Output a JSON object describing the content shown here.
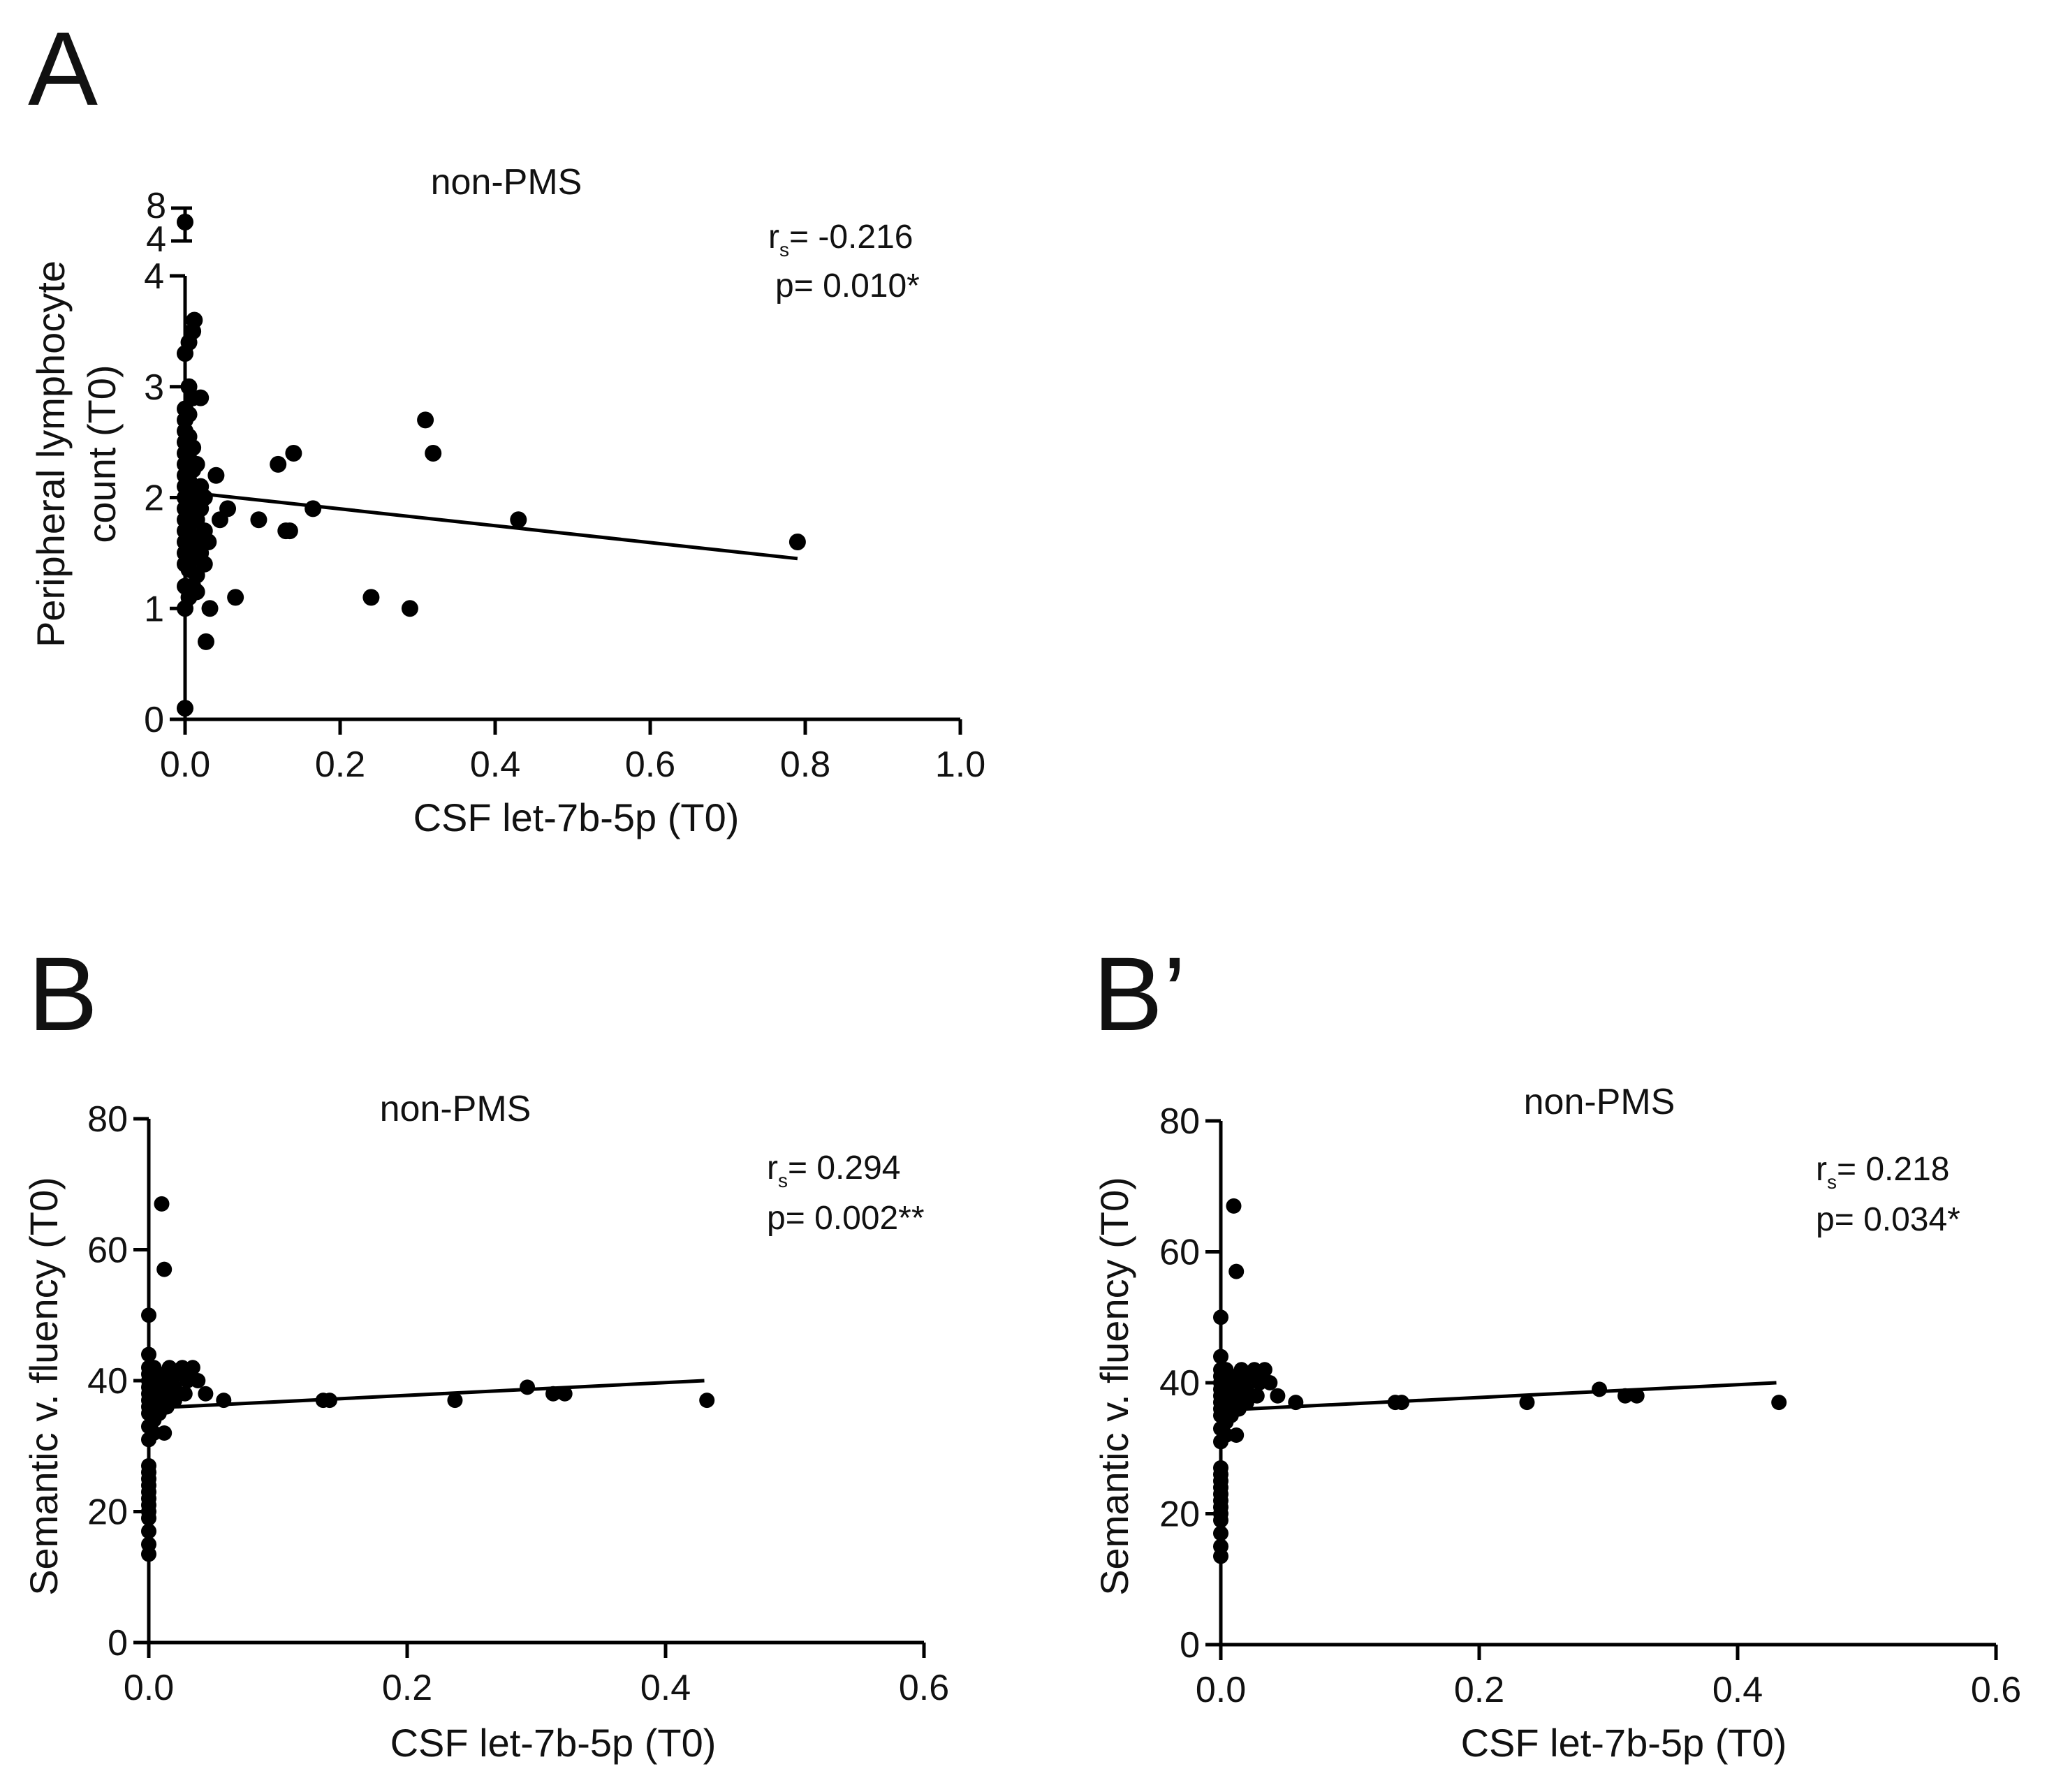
{
  "chart_data": [
    {
      "panel": "A",
      "type": "scatter",
      "title": "non-PMS",
      "xlabel": "CSF let-7b-5p (T0)",
      "ylabel_lines": [
        "Peripheral lymphocyte",
        "count (T0)"
      ],
      "xlim": [
        0,
        1.0
      ],
      "ylim": [
        0,
        4
      ],
      "ylim_break": [
        4,
        8
      ],
      "x_ticks": [
        "0.0",
        "0.2",
        "0.4",
        "0.6",
        "0.8",
        "1.0"
      ],
      "y_ticks": [
        "0",
        "1",
        "2",
        "3",
        "4"
      ],
      "y_break_ticks": [
        "4",
        "8"
      ],
      "stats": {
        "rs_symbol": "r",
        "rs_sub": "s",
        "rs_value": "= -0.216",
        "p_value": "p= 0.010*"
      },
      "fit": {
        "x": [
          0.0,
          0.79
        ],
        "y": [
          2.05,
          1.45
        ]
      },
      "points": [
        {
          "x": 0.0,
          "y": 0.1
        },
        {
          "x": 0.0,
          "y": 1.0
        },
        {
          "x": 0.0,
          "y": 1.2
        },
        {
          "x": 0.0,
          "y": 1.4
        },
        {
          "x": 0.0,
          "y": 1.5
        },
        {
          "x": 0.0,
          "y": 1.6
        },
        {
          "x": 0.0,
          "y": 1.7
        },
        {
          "x": 0.0,
          "y": 1.8
        },
        {
          "x": 0.0,
          "y": 1.9
        },
        {
          "x": 0.0,
          "y": 2.0
        },
        {
          "x": 0.0,
          "y": 2.1
        },
        {
          "x": 0.0,
          "y": 2.2
        },
        {
          "x": 0.0,
          "y": 2.3
        },
        {
          "x": 0.0,
          "y": 2.4
        },
        {
          "x": 0.0,
          "y": 2.5
        },
        {
          "x": 0.0,
          "y": 2.6
        },
        {
          "x": 0.0,
          "y": 2.7
        },
        {
          "x": 0.0,
          "y": 2.8
        },
        {
          "x": 0.0,
          "y": 3.3
        },
        {
          "x": 0.005,
          "y": 1.1
        },
        {
          "x": 0.005,
          "y": 1.35
        },
        {
          "x": 0.005,
          "y": 1.55
        },
        {
          "x": 0.005,
          "y": 1.75
        },
        {
          "x": 0.005,
          "y": 1.95
        },
        {
          "x": 0.005,
          "y": 2.15
        },
        {
          "x": 0.005,
          "y": 2.35
        },
        {
          "x": 0.005,
          "y": 2.55
        },
        {
          "x": 0.005,
          "y": 2.75
        },
        {
          "x": 0.005,
          "y": 3.0
        },
        {
          "x": 0.005,
          "y": 3.4
        },
        {
          "x": 0.01,
          "y": 1.2
        },
        {
          "x": 0.01,
          "y": 1.45
        },
        {
          "x": 0.01,
          "y": 1.65
        },
        {
          "x": 0.01,
          "y": 1.85
        },
        {
          "x": 0.01,
          "y": 2.05
        },
        {
          "x": 0.01,
          "y": 2.25
        },
        {
          "x": 0.01,
          "y": 2.45
        },
        {
          "x": 0.01,
          "y": 2.9
        },
        {
          "x": 0.01,
          "y": 3.5
        },
        {
          "x": 0.012,
          "y": 3.6
        },
        {
          "x": 0.015,
          "y": 1.3
        },
        {
          "x": 0.015,
          "y": 1.6
        },
        {
          "x": 0.015,
          "y": 1.8
        },
        {
          "x": 0.015,
          "y": 2.0
        },
        {
          "x": 0.015,
          "y": 2.3
        },
        {
          "x": 0.015,
          "y": 1.15
        },
        {
          "x": 0.02,
          "y": 1.5
        },
        {
          "x": 0.02,
          "y": 1.9
        },
        {
          "x": 0.02,
          "y": 2.1
        },
        {
          "x": 0.02,
          "y": 2.9
        },
        {
          "x": 0.025,
          "y": 1.4
        },
        {
          "x": 0.025,
          "y": 1.7
        },
        {
          "x": 0.025,
          "y": 2.0
        },
        {
          "x": 0.027,
          "y": 0.7
        },
        {
          "x": 0.03,
          "y": 1.6
        },
        {
          "x": 0.032,
          "y": 1.0
        },
        {
          "x": 0.04,
          "y": 2.2
        },
        {
          "x": 0.045,
          "y": 1.8
        },
        {
          "x": 0.055,
          "y": 1.9
        },
        {
          "x": 0.065,
          "y": 1.1
        },
        {
          "x": 0.095,
          "y": 1.8
        },
        {
          "x": 0.12,
          "y": 2.3
        },
        {
          "x": 0.13,
          "y": 1.7
        },
        {
          "x": 0.135,
          "y": 1.7
        },
        {
          "x": 0.14,
          "y": 2.4
        },
        {
          "x": 0.165,
          "y": 1.9
        },
        {
          "x": 0.24,
          "y": 1.1
        },
        {
          "x": 0.29,
          "y": 1.0
        },
        {
          "x": 0.31,
          "y": 2.7
        },
        {
          "x": 0.32,
          "y": 2.4
        },
        {
          "x": 0.43,
          "y": 1.8
        },
        {
          "x": 0.79,
          "y": 1.6
        }
      ],
      "break_points": [
        {
          "x": 0.0,
          "y": 5.5
        }
      ]
    },
    {
      "panel": "B",
      "type": "scatter",
      "title": "non-PMS",
      "xlabel": "CSF let-7b-5p (T0)",
      "ylabel_lines": [
        "Semantic v. fluency (T0)"
      ],
      "xlim": [
        0,
        0.6
      ],
      "ylim": [
        0,
        80
      ],
      "x_ticks": [
        "0.0",
        "0.2",
        "0.4",
        "0.6"
      ],
      "y_ticks": [
        "0",
        "20",
        "40",
        "60",
        "80"
      ],
      "stats": {
        "rs_symbol": "r",
        "rs_sub": "s",
        "rs_value": "= 0.294",
        "p_value": "p= 0.002**"
      },
      "fit": {
        "x": [
          0.0,
          0.43
        ],
        "y": [
          35.8,
          40.0
        ]
      }
    },
    {
      "panel": "B’",
      "type": "scatter",
      "title": "non-PMS",
      "xlabel": "CSF let-7b-5p (T0)",
      "ylabel_lines": [
        "Semantic v. fluency (T0)"
      ],
      "xlim": [
        0,
        0.6
      ],
      "ylim": [
        0,
        80
      ],
      "x_ticks": [
        "0.0",
        "0.2",
        "0.4",
        "0.6"
      ],
      "y_ticks": [
        "0",
        "20",
        "40",
        "60",
        "80"
      ],
      "stats": {
        "rs_symbol": "r",
        "rs_sub": "s",
        "rs_value": "= 0.218",
        "p_value": "p= 0.034*"
      },
      "fit": {
        "x": [
          0.0,
          0.43
        ],
        "y": [
          35.8,
          40.0
        ]
      }
    }
  ],
  "fluency_points": [
    {
      "x": 0.0,
      "y": 13.5
    },
    {
      "x": 0.0,
      "y": 15
    },
    {
      "x": 0.0,
      "y": 17
    },
    {
      "x": 0.0,
      "y": 19
    },
    {
      "x": 0.0,
      "y": 20
    },
    {
      "x": 0.0,
      "y": 21
    },
    {
      "x": 0.0,
      "y": 22
    },
    {
      "x": 0.0,
      "y": 23
    },
    {
      "x": 0.0,
      "y": 24
    },
    {
      "x": 0.0,
      "y": 25
    },
    {
      "x": 0.0,
      "y": 26
    },
    {
      "x": 0.0,
      "y": 27
    },
    {
      "x": 0.0,
      "y": 31
    },
    {
      "x": 0.0,
      "y": 33
    },
    {
      "x": 0.0,
      "y": 35
    },
    {
      "x": 0.0,
      "y": 36
    },
    {
      "x": 0.0,
      "y": 37
    },
    {
      "x": 0.0,
      "y": 38
    },
    {
      "x": 0.0,
      "y": 39
    },
    {
      "x": 0.0,
      "y": 40
    },
    {
      "x": 0.0,
      "y": 41
    },
    {
      "x": 0.0,
      "y": 42
    },
    {
      "x": 0.0,
      "y": 44
    },
    {
      "x": 0.0,
      "y": 50
    },
    {
      "x": 0.004,
      "y": 32
    },
    {
      "x": 0.004,
      "y": 34
    },
    {
      "x": 0.004,
      "y": 36
    },
    {
      "x": 0.004,
      "y": 38
    },
    {
      "x": 0.004,
      "y": 40
    },
    {
      "x": 0.004,
      "y": 42
    },
    {
      "x": 0.008,
      "y": 35
    },
    {
      "x": 0.008,
      "y": 37
    },
    {
      "x": 0.008,
      "y": 39
    },
    {
      "x": 0.008,
      "y": 41
    },
    {
      "x": 0.01,
      "y": 67
    },
    {
      "x": 0.012,
      "y": 57
    },
    {
      "x": 0.012,
      "y": 32
    },
    {
      "x": 0.014,
      "y": 36
    },
    {
      "x": 0.014,
      "y": 38
    },
    {
      "x": 0.016,
      "y": 40
    },
    {
      "x": 0.016,
      "y": 42
    },
    {
      "x": 0.02,
      "y": 37
    },
    {
      "x": 0.02,
      "y": 39
    },
    {
      "x": 0.024,
      "y": 41
    },
    {
      "x": 0.026,
      "y": 42
    },
    {
      "x": 0.028,
      "y": 38
    },
    {
      "x": 0.03,
      "y": 40
    },
    {
      "x": 0.034,
      "y": 42
    },
    {
      "x": 0.038,
      "y": 40
    },
    {
      "x": 0.044,
      "y": 38
    },
    {
      "x": 0.058,
      "y": 37
    },
    {
      "x": 0.135,
      "y": 37
    },
    {
      "x": 0.14,
      "y": 37
    },
    {
      "x": 0.237,
      "y": 37
    },
    {
      "x": 0.293,
      "y": 39
    },
    {
      "x": 0.313,
      "y": 38
    },
    {
      "x": 0.322,
      "y": 38
    },
    {
      "x": 0.432,
      "y": 37
    }
  ]
}
